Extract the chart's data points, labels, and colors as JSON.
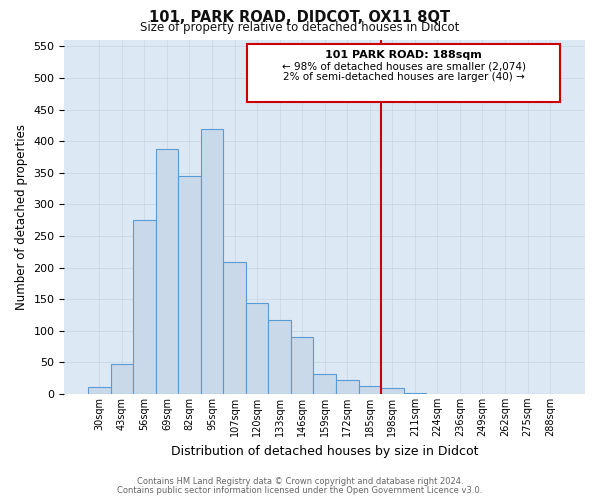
{
  "title": "101, PARK ROAD, DIDCOT, OX11 8QT",
  "subtitle": "Size of property relative to detached houses in Didcot",
  "xlabel": "Distribution of detached houses by size in Didcot",
  "ylabel": "Number of detached properties",
  "footer_line1": "Contains HM Land Registry data © Crown copyright and database right 2024.",
  "footer_line2": "Contains public sector information licensed under the Open Government Licence v3.0.",
  "bar_labels": [
    "30sqm",
    "43sqm",
    "56sqm",
    "69sqm",
    "82sqm",
    "95sqm",
    "107sqm",
    "120sqm",
    "133sqm",
    "146sqm",
    "159sqm",
    "172sqm",
    "185sqm",
    "198sqm",
    "211sqm",
    "224sqm",
    "236sqm",
    "249sqm",
    "262sqm",
    "275sqm",
    "288sqm"
  ],
  "bar_values": [
    11,
    48,
    275,
    387,
    345,
    419,
    209,
    144,
    117,
    90,
    31,
    22,
    12,
    10,
    2,
    0,
    0,
    0,
    0,
    0,
    0
  ],
  "bar_color": "#c9d9ea",
  "bar_edge_color": "#5b9bd5",
  "grid_color": "#c8d4e0",
  "vline_x": 12.5,
  "vline_color": "#cc0000",
  "annotation_title": "101 PARK ROAD: 188sqm",
  "annotation_line1": "← 98% of detached houses are smaller (2,074)",
  "annotation_line2": "2% of semi-detached houses are larger (40) →",
  "annotation_box_color": "#cc0000",
  "ylim": [
    0,
    560
  ],
  "yticks": [
    0,
    50,
    100,
    150,
    200,
    250,
    300,
    350,
    400,
    450,
    500,
    550
  ],
  "plot_bg_color": "#dce9f5",
  "fig_bg_color": "#ffffff"
}
